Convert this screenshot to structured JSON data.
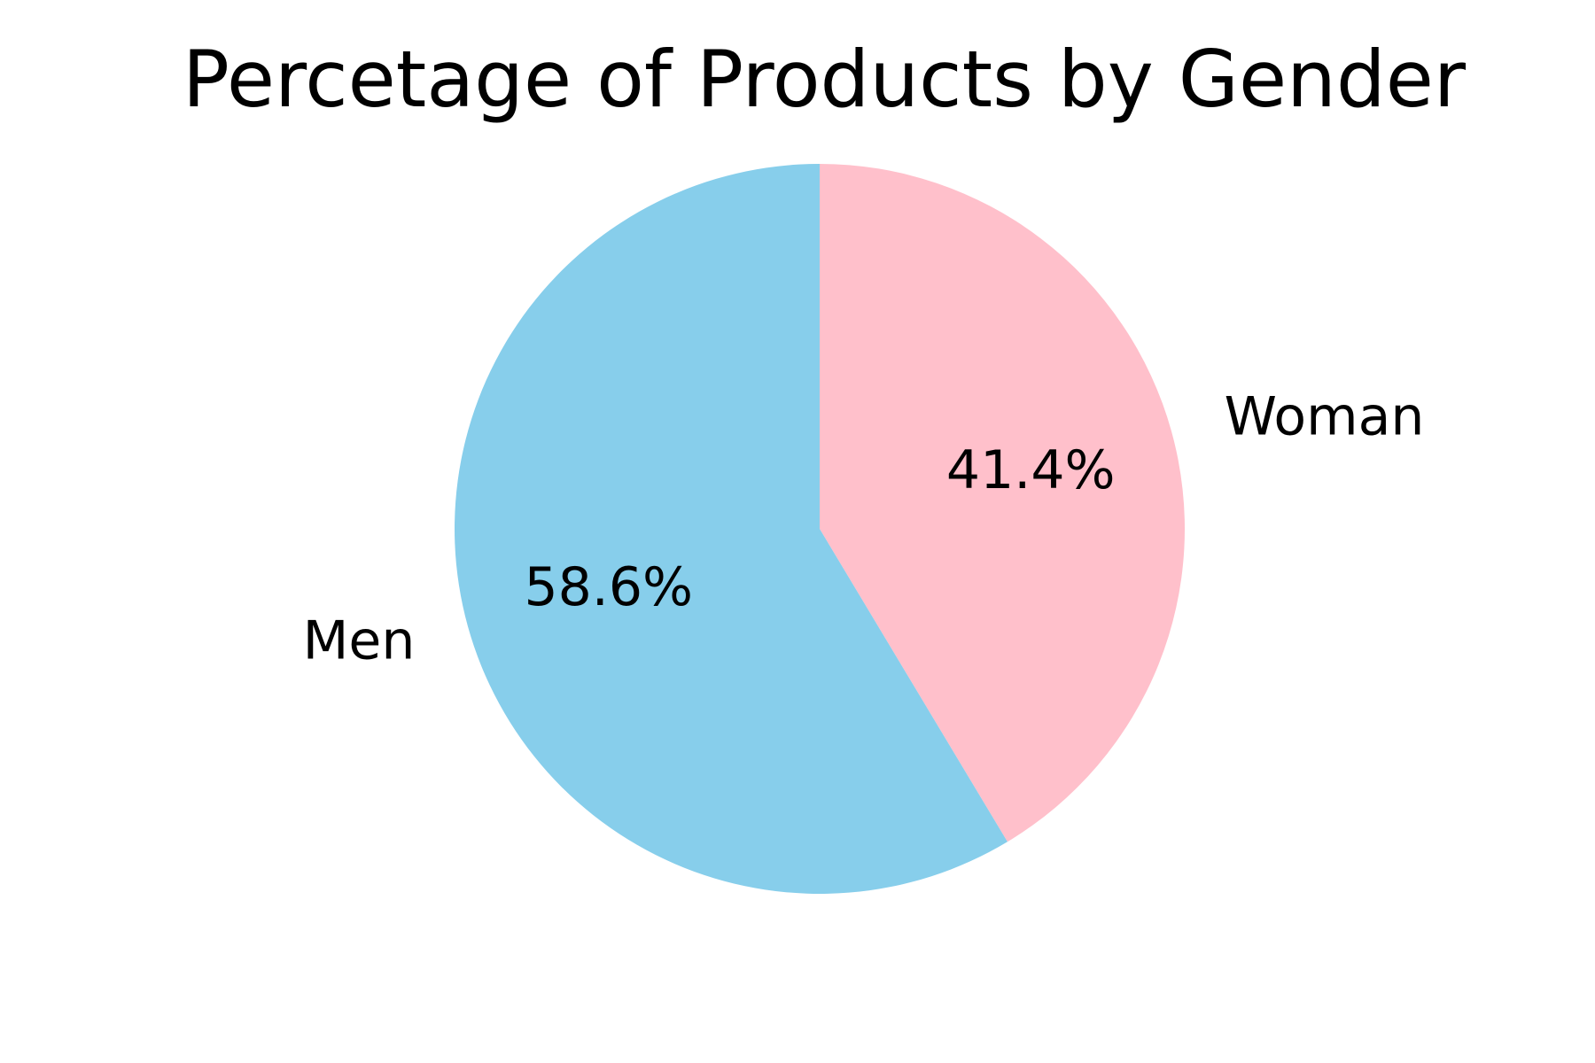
{
  "chart_data": {
    "type": "pie",
    "title": "Percetage of Products by Gender",
    "start_angle_deg": 90,
    "direction": "clockwise",
    "slices": [
      {
        "label": "Woman",
        "value": 41.4,
        "pct_label": "41.4%",
        "color": "#FFC0CB"
      },
      {
        "label": "Men",
        "value": 58.6,
        "pct_label": "58.6%",
        "color": "#87CEEB"
      }
    ]
  }
}
